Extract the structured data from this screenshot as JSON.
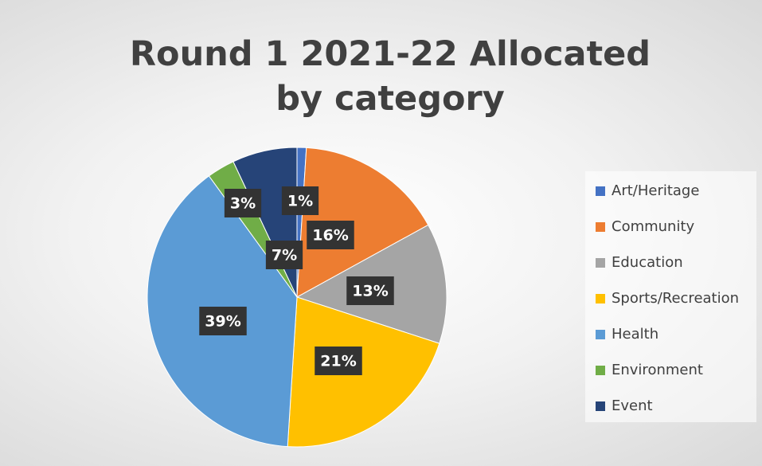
{
  "chart_data": {
    "type": "pie",
    "title": "Round 1 2021-22 Allocated by category",
    "categories": [
      "Art/Heritage",
      "Community",
      "Education",
      "Sports/Recreation",
      "Health",
      "Environment",
      "Event"
    ],
    "values": [
      1,
      16,
      13,
      21,
      39,
      3,
      7
    ],
    "value_labels": [
      "1%",
      "16%",
      "13%",
      "21%",
      "39%",
      "3%",
      "7%"
    ],
    "colors": [
      "#4472c4",
      "#ed7d31",
      "#a5a5a5",
      "#ffc000",
      "#5b9bd5",
      "#70ad47",
      "#264478"
    ],
    "legend": "right"
  }
}
